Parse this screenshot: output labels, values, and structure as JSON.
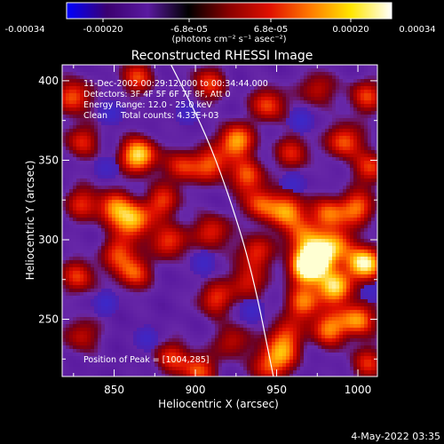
{
  "colorbar": {
    "ticks": [
      "-0.00034",
      "-0.00020",
      "-6.8e-05",
      "6.8e-05",
      "0.00020",
      "0.00034"
    ],
    "unit_label": "(photons cm⁻² s⁻¹ asec⁻²)",
    "range": [
      -0.00034,
      0.00034
    ],
    "colors": [
      "#0000ff",
      "#3b0070",
      "#5a1aa0",
      "#000000",
      "#8a0000",
      "#e01000",
      "#ff7a00",
      "#ffe600",
      "#ffffff"
    ]
  },
  "plot": {
    "title": "Reconstructed RHESSI Image",
    "xlabel": "Heliocentric X (arcsec)",
    "ylabel": "Heliocentric Y (arcsec)",
    "info_lines": [
      "11-Dec-2002 00:29:12.000 to 00:34:44.000",
      "Detectors: 3F 4F 5F 6F 7F 8F, Att 0",
      "Energy Range: 12.0 - 25.0 keV",
      "Clean     Total counts: 4.33E+03"
    ],
    "peak_label": "Position of Peak = [1004,285]"
  },
  "footer": {
    "timestamp": "4-May-2022 03:35"
  },
  "chart_data": {
    "type": "heatmap",
    "title": "Reconstructed RHESSI Image",
    "xlabel": "Heliocentric X (arcsec)",
    "ylabel": "Heliocentric Y (arcsec)",
    "xlim": [
      818,
      1012
    ],
    "ylim": [
      214,
      410
    ],
    "x_ticks": [
      850,
      900,
      950,
      1000
    ],
    "y_ticks": [
      250,
      300,
      350,
      400
    ],
    "peak": [
      1004,
      285
    ],
    "colorbar_range": [
      -0.00034,
      0.00034
    ],
    "grid": false,
    "limb_curve": [
      [
        885,
        410
      ],
      [
        905,
        370
      ],
      [
        920,
        330
      ],
      [
        935,
        280
      ],
      [
        948,
        214
      ]
    ],
    "blobs": [
      {
        "x": 825,
        "y": 390,
        "amp": 0.6
      },
      {
        "x": 864,
        "y": 402,
        "amp": 0.5
      },
      {
        "x": 908,
        "y": 398,
        "amp": 0.5
      },
      {
        "x": 945,
        "y": 385,
        "amp": 0.55
      },
      {
        "x": 975,
        "y": 395,
        "amp": 0.4
      },
      {
        "x": 1005,
        "y": 390,
        "amp": 0.5
      },
      {
        "x": 830,
        "y": 362,
        "amp": 0.45
      },
      {
        "x": 865,
        "y": 353,
        "amp": 0.9
      },
      {
        "x": 892,
        "y": 346,
        "amp": 0.5
      },
      {
        "x": 910,
        "y": 347,
        "amp": 0.55
      },
      {
        "x": 925,
        "y": 362,
        "amp": 0.75
      },
      {
        "x": 932,
        "y": 340,
        "amp": 0.55
      },
      {
        "x": 960,
        "y": 355,
        "amp": 0.45
      },
      {
        "x": 992,
        "y": 362,
        "amp": 0.6
      },
      {
        "x": 1008,
        "y": 345,
        "amp": 0.5
      },
      {
        "x": 830,
        "y": 323,
        "amp": 0.45
      },
      {
        "x": 850,
        "y": 320,
        "amp": 0.6
      },
      {
        "x": 862,
        "y": 312,
        "amp": 0.75
      },
      {
        "x": 880,
        "y": 324,
        "amp": 0.5
      },
      {
        "x": 884,
        "y": 299,
        "amp": 0.55
      },
      {
        "x": 910,
        "y": 305,
        "amp": 0.5
      },
      {
        "x": 940,
        "y": 322,
        "amp": 0.55
      },
      {
        "x": 957,
        "y": 318,
        "amp": 0.7
      },
      {
        "x": 965,
        "y": 302,
        "amp": 0.5
      },
      {
        "x": 982,
        "y": 316,
        "amp": 0.6
      },
      {
        "x": 1000,
        "y": 320,
        "amp": 0.6
      },
      {
        "x": 987,
        "y": 298,
        "amp": 0.5
      },
      {
        "x": 853,
        "y": 292,
        "amp": 0.5
      },
      {
        "x": 828,
        "y": 277,
        "amp": 0.5
      },
      {
        "x": 862,
        "y": 279,
        "amp": 0.55
      },
      {
        "x": 937,
        "y": 292,
        "amp": 0.5
      },
      {
        "x": 912,
        "y": 263,
        "amp": 0.5
      },
      {
        "x": 932,
        "y": 273,
        "amp": 0.45
      },
      {
        "x": 968,
        "y": 282,
        "amp": 0.9
      },
      {
        "x": 976,
        "y": 290,
        "amp": 1.0
      },
      {
        "x": 985,
        "y": 270,
        "amp": 0.85
      },
      {
        "x": 1004,
        "y": 285,
        "amp": 1.0
      },
      {
        "x": 1000,
        "y": 250,
        "amp": 0.7
      },
      {
        "x": 966,
        "y": 260,
        "amp": 0.6
      },
      {
        "x": 982,
        "y": 244,
        "amp": 0.65
      },
      {
        "x": 955,
        "y": 240,
        "amp": 0.45
      },
      {
        "x": 953,
        "y": 228,
        "amp": 0.5
      },
      {
        "x": 945,
        "y": 220,
        "amp": 0.45
      },
      {
        "x": 830,
        "y": 240,
        "amp": 0.4
      },
      {
        "x": 885,
        "y": 226,
        "amp": 0.45
      },
      {
        "x": 902,
        "y": 218,
        "amp": 0.55
      },
      {
        "x": 923,
        "y": 236,
        "amp": 0.4
      },
      {
        "x": 1006,
        "y": 222,
        "amp": 0.45
      }
    ],
    "cold_spots": [
      {
        "x": 848,
        "y": 380,
        "amp": 0.5
      },
      {
        "x": 895,
        "y": 380,
        "amp": 0.45
      },
      {
        "x": 965,
        "y": 375,
        "amp": 0.5
      },
      {
        "x": 845,
        "y": 345,
        "amp": 0.4
      },
      {
        "x": 960,
        "y": 335,
        "amp": 0.45
      },
      {
        "x": 905,
        "y": 285,
        "amp": 0.45
      },
      {
        "x": 845,
        "y": 260,
        "amp": 0.5
      },
      {
        "x": 935,
        "y": 255,
        "amp": 0.45
      },
      {
        "x": 1008,
        "y": 268,
        "amp": 0.4
      },
      {
        "x": 870,
        "y": 238,
        "amp": 0.45
      }
    ]
  }
}
